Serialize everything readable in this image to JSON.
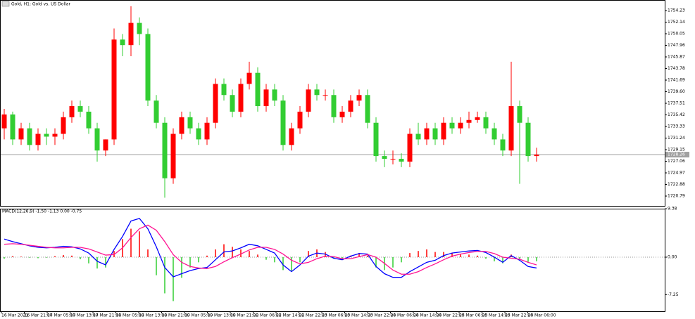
{
  "chart_data": [
    {
      "type": "candlestick",
      "title": "Gold, H1: Gold vs. US Dollar",
      "up_color": "#ff0000",
      "down_color": "#32cd32",
      "open": [
        1733,
        1735.5,
        1731,
        1733,
        1730,
        1732,
        1731.5,
        1732,
        1735,
        1737,
        1736,
        1733,
        1729,
        1731,
        1749,
        1748,
        1752,
        1750,
        1738,
        1734,
        1724,
        1732,
        1735,
        1733,
        1731,
        1734,
        1741,
        1739,
        1736,
        1741,
        1743,
        1737,
        1740,
        1738,
        1730,
        1733,
        1736,
        1740,
        1739,
        1739,
        1735,
        1736,
        1738,
        1739,
        1734,
        1728,
        1727.5,
        1727.5,
        1727,
        1732,
        1731,
        1733,
        1731,
        1734,
        1733,
        1734,
        1734.5,
        1735,
        1733,
        1731,
        1729,
        1737,
        1734,
        1728
      ],
      "high": [
        1736.5,
        1736,
        1734,
        1734,
        1733,
        1733,
        1733,
        1736,
        1738,
        1738,
        1737,
        1734,
        1731,
        1751,
        1750,
        1755,
        1753,
        1751,
        1739,
        1735,
        1733,
        1736,
        1736,
        1734,
        1735,
        1742,
        1742,
        1740,
        1742,
        1745,
        1744,
        1741,
        1741,
        1739,
        1734,
        1737,
        1741,
        1741,
        1740,
        1740,
        1737,
        1739,
        1740,
        1740,
        1735,
        1729,
        1729,
        1728.5,
        1733,
        1734,
        1734,
        1734,
        1735,
        1735,
        1735,
        1736,
        1736,
        1736,
        1734,
        1732,
        1745,
        1738,
        1735,
        1729.5
      ],
      "low": [
        1731,
        1730,
        1730,
        1729,
        1729,
        1730,
        1730,
        1731,
        1734,
        1735,
        1732,
        1727,
        1728,
        1730,
        1746,
        1746,
        1748,
        1737,
        1733,
        1720.5,
        1723,
        1731,
        1732,
        1730,
        1730,
        1733,
        1738,
        1735,
        1735,
        1740,
        1736,
        1736,
        1737,
        1729,
        1729,
        1732,
        1735,
        1738,
        1738,
        1734,
        1734,
        1735,
        1737,
        1733,
        1727,
        1726,
        1726.5,
        1726,
        1726,
        1730,
        1730,
        1730,
        1730,
        1732,
        1732,
        1733,
        1734,
        1732,
        1730,
        1728,
        1728,
        1723,
        1727,
        1727
      ],
      "close": [
        1735.5,
        1731,
        1733,
        1730,
        1732,
        1731.5,
        1732,
        1735,
        1737,
        1736,
        1733,
        1729,
        1731,
        1749,
        1748,
        1752,
        1750,
        1738,
        1734,
        1724,
        1732,
        1735,
        1733,
        1731,
        1734,
        1741,
        1739,
        1736,
        1741,
        1743,
        1737,
        1740,
        1738,
        1730,
        1733,
        1736,
        1740,
        1739,
        1739,
        1735,
        1736,
        1738,
        1739,
        1734,
        1728,
        1727.5,
        1727.5,
        1727,
        1732,
        1731,
        1733,
        1731,
        1734,
        1733,
        1734,
        1734.5,
        1735,
        1733,
        1731,
        1729,
        1737,
        1734,
        1728,
        1728.26
      ],
      "current_price": 1728.26,
      "ylim": [
        1719.02,
        1756.13
      ],
      "yticks": [
        1754.23,
        1752.14,
        1750.05,
        1747.96,
        1745.87,
        1743.78,
        1741.69,
        {
          "value": 1739.6,
          "label": "1739.60"
        },
        1737.51,
        1735.42,
        1733.33,
        1731.24,
        1729.15,
        1727.06,
        1724.97,
        1722.88,
        1720.79
      ]
    },
    {
      "type": "macd",
      "title": "MACD(12,26,9) -1.50 -1.13 0.00 -0.75",
      "histogram": [
        -0.3,
        0.2,
        0.1,
        -0.1,
        -0.2,
        -0.1,
        0.2,
        0.4,
        0.3,
        -0.4,
        -1.2,
        -2.2,
        -2.0,
        1.2,
        3.5,
        5.5,
        5.0,
        1.5,
        -3.5,
        -7.0,
        -8.5,
        -4.0,
        -2.0,
        -1.0,
        0.3,
        1.5,
        2.5,
        2.0,
        1.5,
        1.2,
        0.5,
        -0.5,
        -1.0,
        -2.5,
        -2.8,
        -1.0,
        1.2,
        1.5,
        1.0,
        -0.3,
        -0.5,
        0.3,
        0.8,
        0.3,
        -2.0,
        -2.5,
        -2.0,
        -1.0,
        0.8,
        1.2,
        1.5,
        1.0,
        1.0,
        0.8,
        0.6,
        0.5,
        0.3,
        -0.3,
        -0.8,
        -1.2,
        0.5,
        -0.3,
        -0.9,
        -0.8
      ],
      "series": [
        {
          "name": "MACD",
          "color": "#0000ff",
          "values": [
            3.5,
            3.0,
            2.6,
            2.2,
            1.9,
            1.8,
            1.9,
            2.1,
            2.0,
            1.6,
            0.8,
            -0.8,
            -1.5,
            1.5,
            4.0,
            7.0,
            7.5,
            5.5,
            2.0,
            -2.0,
            -3.8,
            -3.2,
            -2.6,
            -2.2,
            -2.0,
            -0.5,
            1.0,
            1.2,
            1.8,
            2.5,
            2.2,
            1.5,
            0.8,
            -1.5,
            -2.8,
            -1.5,
            0.2,
            0.8,
            0.6,
            -0.2,
            -0.5,
            0.2,
            0.7,
            0.6,
            -1.8,
            -3.2,
            -3.9,
            -3.9,
            -2.8,
            -1.9,
            -1.0,
            -0.6,
            0.3,
            0.8,
            1.0,
            1.2,
            1.3,
            0.9,
            0.0,
            -1.0,
            0.3,
            -0.6,
            -1.8,
            -2.1
          ]
        },
        {
          "name": "Signal",
          "color": "#ff1493",
          "values": [
            2.5,
            2.6,
            2.5,
            2.3,
            2.1,
            1.9,
            1.8,
            1.8,
            1.9,
            1.9,
            1.6,
            1.0,
            0.4,
            0.5,
            1.8,
            3.8,
            5.5,
            6.2,
            5.2,
            3.0,
            0.5,
            -1.0,
            -1.8,
            -2.1,
            -2.2,
            -1.8,
            -0.9,
            -0.1,
            0.6,
            1.4,
            1.9,
            1.9,
            1.5,
            0.6,
            -0.6,
            -1.3,
            -1.0,
            -0.3,
            0.2,
            0.1,
            -0.3,
            -0.3,
            0.1,
            0.5,
            0.0,
            -1.2,
            -2.5,
            -3.3,
            -3.3,
            -2.8,
            -2.0,
            -1.3,
            -0.5,
            0.2,
            0.6,
            0.9,
            1.1,
            1.1,
            0.7,
            0.0,
            -0.2,
            -0.4,
            -1.0,
            -1.5
          ]
        }
      ],
      "up_color": "#ff0000",
      "down_color": "#32cd32",
      "ylim": [
        -10.47,
        9.38
      ],
      "yticks": [
        9.38,
        {
          "value": 0,
          "label": "0.00"
        },
        -7.25
      ],
      "time_labels": [
        "16 Mar 2021",
        "16 Mar 21:00",
        "17 Mar 05:00",
        "17 Mar 13:00",
        "17 Mar 21:00",
        "18 Mar 05:00",
        "18 Mar 13:00",
        "18 Mar 21:00",
        "19 Mar 05:00",
        "19 Mar 13:00",
        "19 Mar 21:00",
        "22 Mar 06:00",
        "22 Mar 14:00",
        "22 Mar 22:00",
        "23 Mar 06:00",
        "23 Mar 14:00",
        "23 Mar 22:00",
        "24 Mar 06:00",
        "24 Mar 14:00",
        "24 Mar 22:00",
        "25 Mar 06:00",
        "25 Mar 14:00",
        "25 Mar 22:00",
        "26 Mar 06:00"
      ]
    }
  ]
}
